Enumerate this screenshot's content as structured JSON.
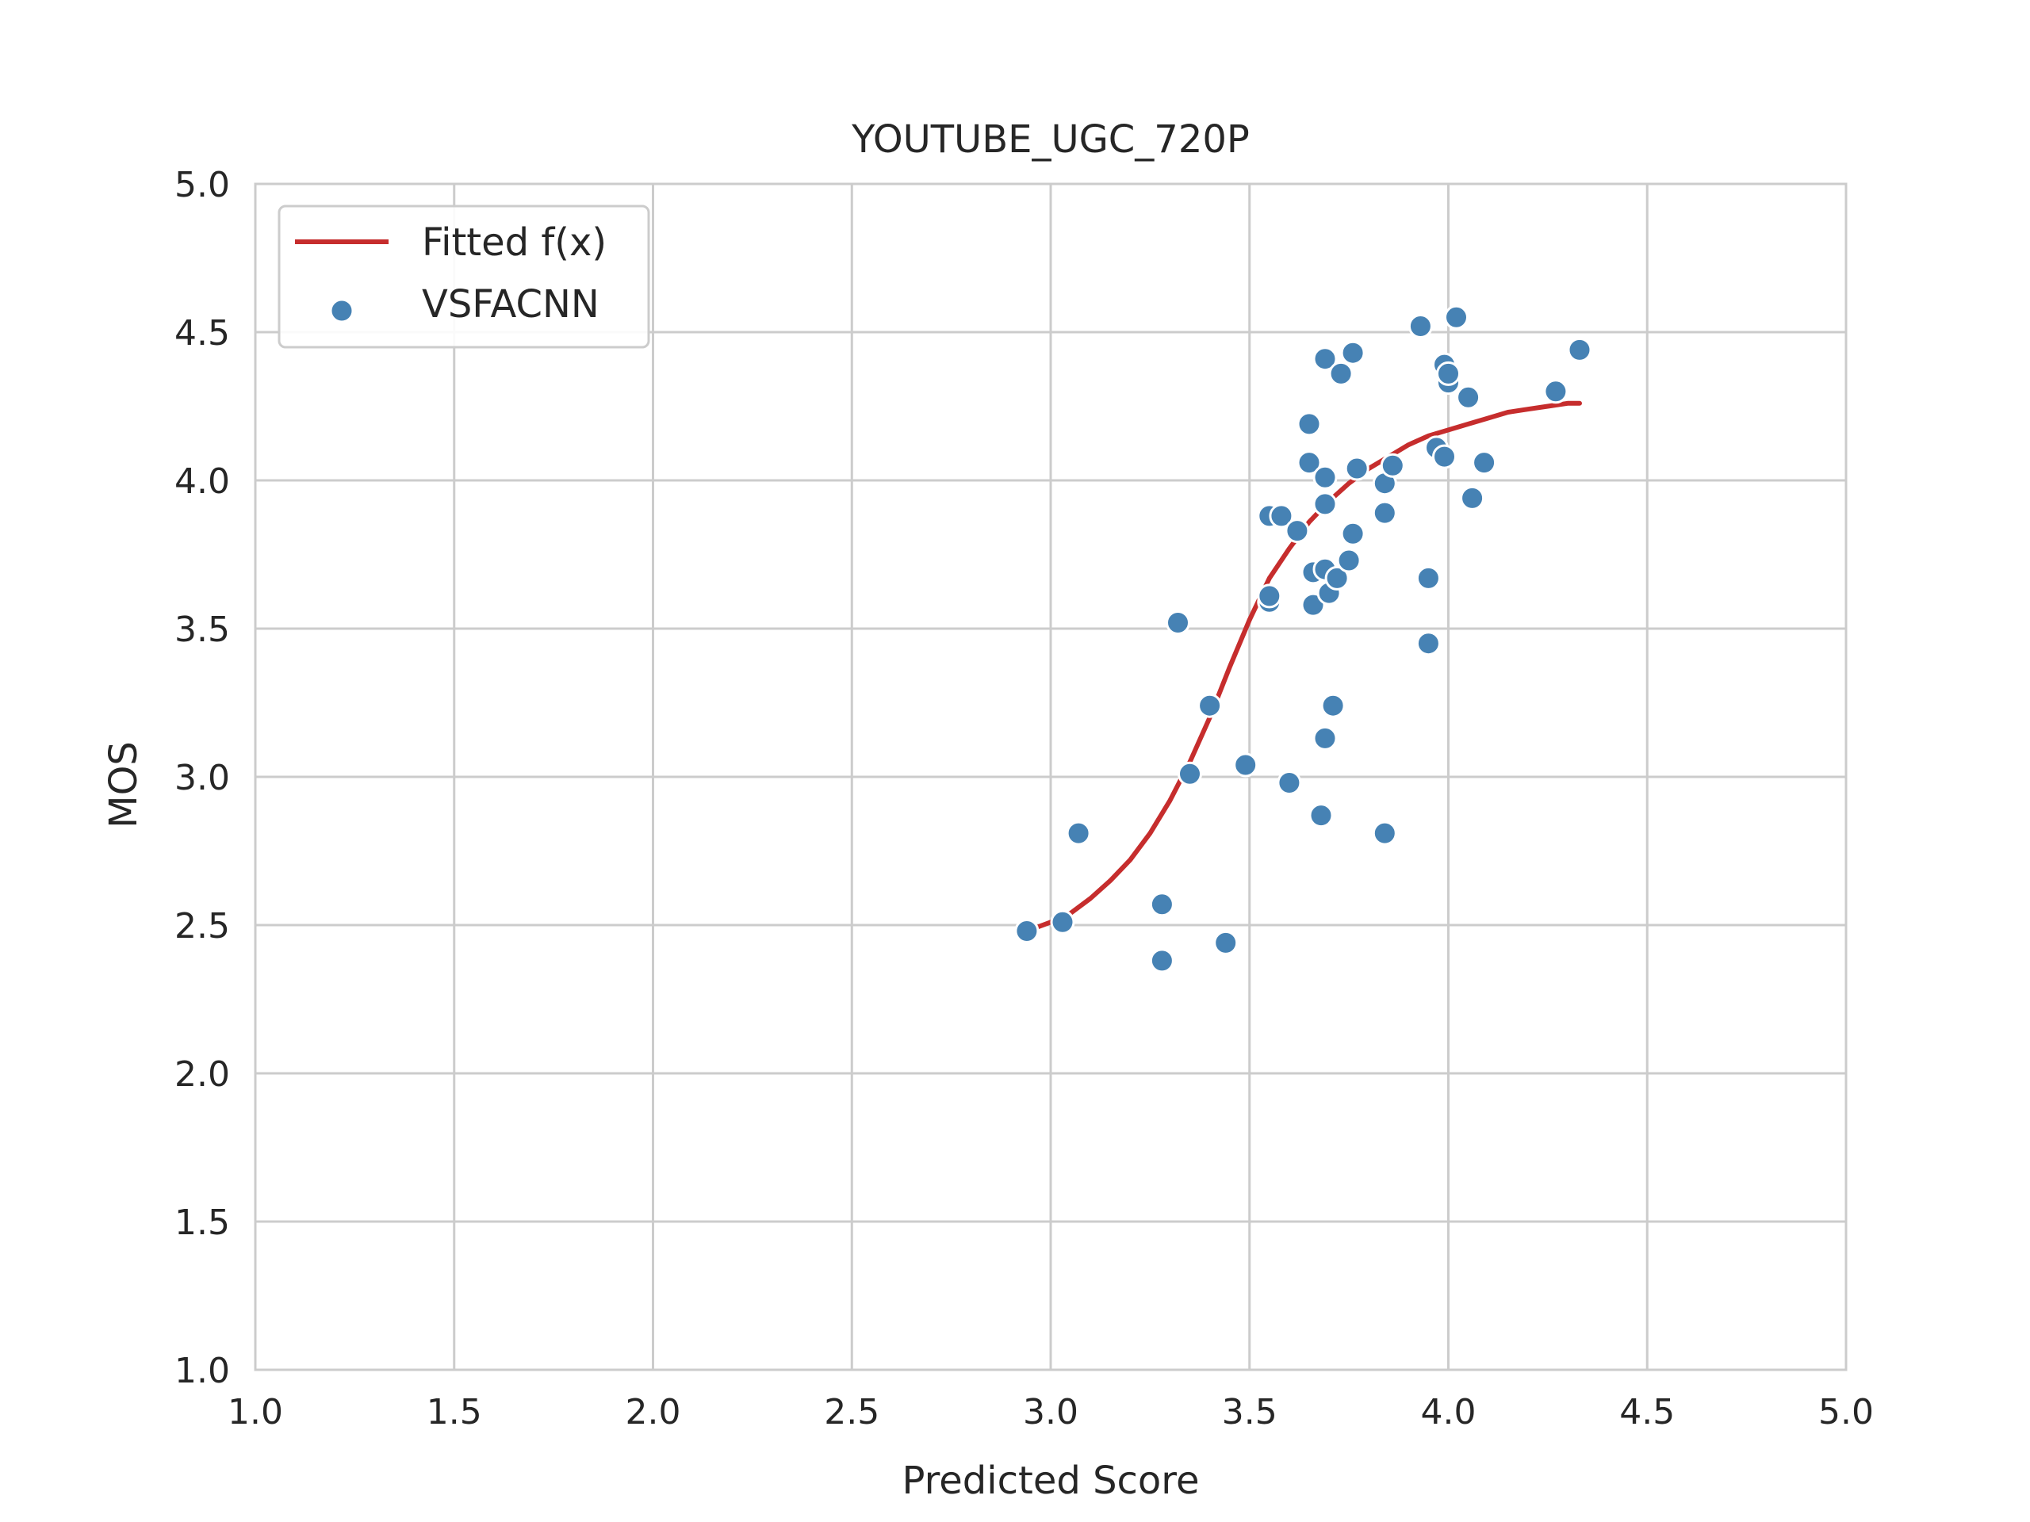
{
  "chart_data": {
    "type": "scatter",
    "title": "YOUTUBE_UGC_720P",
    "xlabel": "Predicted Score",
    "ylabel": "MOS",
    "xlim": [
      1.0,
      5.0
    ],
    "ylim": [
      1.0,
      5.0
    ],
    "xticks": [
      "1.0",
      "1.5",
      "2.0",
      "2.5",
      "3.0",
      "3.5",
      "4.0",
      "4.5",
      "5.0"
    ],
    "yticks": [
      "1.0",
      "1.5",
      "2.0",
      "2.5",
      "3.0",
      "3.5",
      "4.0",
      "4.5",
      "5.0"
    ],
    "grid": true,
    "legend": {
      "location": "top-left",
      "entries": [
        "Fitted f(x)",
        "VSFACNN"
      ]
    },
    "colors": {
      "scatter": "#4682b4",
      "fit": "#c62d2d",
      "grid": "#cccccc"
    },
    "series": [
      {
        "name": "VSFACNN",
        "kind": "scatter",
        "points": [
          [
            2.94,
            2.48
          ],
          [
            3.03,
            2.51
          ],
          [
            3.07,
            2.81
          ],
          [
            3.28,
            2.57
          ],
          [
            3.28,
            2.38
          ],
          [
            3.32,
            3.52
          ],
          [
            3.35,
            3.01
          ],
          [
            3.4,
            3.24
          ],
          [
            3.44,
            2.44
          ],
          [
            3.49,
            3.04
          ],
          [
            3.55,
            3.88
          ],
          [
            3.55,
            3.59
          ],
          [
            3.55,
            3.61
          ],
          [
            3.58,
            3.88
          ],
          [
            3.6,
            2.98
          ],
          [
            3.62,
            3.83
          ],
          [
            3.65,
            4.19
          ],
          [
            3.65,
            4.06
          ],
          [
            3.66,
            3.69
          ],
          [
            3.66,
            3.58
          ],
          [
            3.68,
            2.87
          ],
          [
            3.69,
            3.13
          ],
          [
            3.69,
            3.7
          ],
          [
            3.69,
            3.92
          ],
          [
            3.69,
            4.01
          ],
          [
            3.69,
            4.41
          ],
          [
            3.7,
            3.62
          ],
          [
            3.71,
            3.24
          ],
          [
            3.72,
            3.67
          ],
          [
            3.73,
            4.36
          ],
          [
            3.75,
            3.73
          ],
          [
            3.76,
            3.82
          ],
          [
            3.76,
            4.43
          ],
          [
            3.77,
            4.04
          ],
          [
            3.84,
            3.99
          ],
          [
            3.84,
            3.89
          ],
          [
            3.84,
            2.81
          ],
          [
            3.86,
            4.05
          ],
          [
            3.93,
            4.52
          ],
          [
            3.95,
            3.67
          ],
          [
            3.95,
            3.45
          ],
          [
            3.97,
            4.11
          ],
          [
            3.99,
            4.08
          ],
          [
            3.99,
            4.39
          ],
          [
            4.0,
            4.33
          ],
          [
            4.0,
            4.36
          ],
          [
            4.02,
            4.55
          ],
          [
            4.05,
            4.28
          ],
          [
            4.06,
            3.94
          ],
          [
            4.09,
            4.06
          ],
          [
            4.27,
            4.3
          ],
          [
            4.33,
            4.44
          ]
        ]
      },
      {
        "name": "Fitted f(x)",
        "kind": "line",
        "points": [
          [
            2.94,
            2.48
          ],
          [
            3.0,
            2.51
          ],
          [
            3.05,
            2.54
          ],
          [
            3.1,
            2.59
          ],
          [
            3.15,
            2.65
          ],
          [
            3.2,
            2.72
          ],
          [
            3.25,
            2.81
          ],
          [
            3.3,
            2.92
          ],
          [
            3.35,
            3.05
          ],
          [
            3.4,
            3.2
          ],
          [
            3.45,
            3.37
          ],
          [
            3.5,
            3.53
          ],
          [
            3.55,
            3.67
          ],
          [
            3.6,
            3.77
          ],
          [
            3.65,
            3.86
          ],
          [
            3.7,
            3.93
          ],
          [
            3.75,
            3.99
          ],
          [
            3.8,
            4.04
          ],
          [
            3.85,
            4.08
          ],
          [
            3.9,
            4.12
          ],
          [
            3.95,
            4.15
          ],
          [
            4.0,
            4.17
          ],
          [
            4.05,
            4.19
          ],
          [
            4.1,
            4.21
          ],
          [
            4.15,
            4.23
          ],
          [
            4.2,
            4.24
          ],
          [
            4.25,
            4.25
          ],
          [
            4.3,
            4.26
          ],
          [
            4.33,
            4.26
          ]
        ]
      }
    ]
  }
}
